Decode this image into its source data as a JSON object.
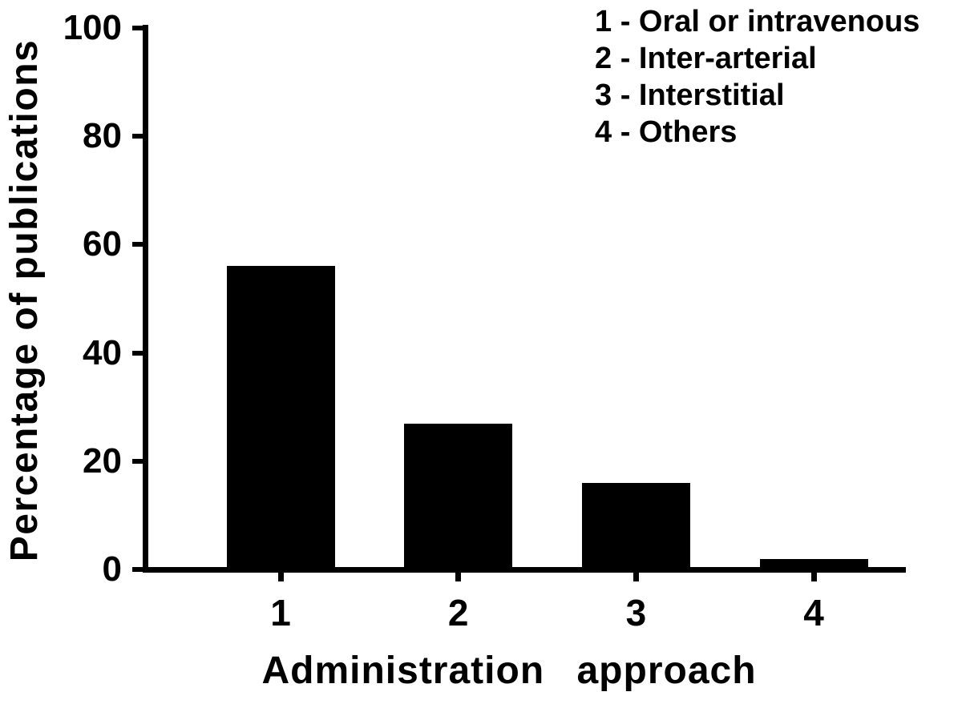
{
  "figure": {
    "background": "#ffffff",
    "foreground": "#000000"
  },
  "chart_data": {
    "type": "bar",
    "title": "",
    "xlabel": "Administration approach",
    "ylabel": "Percentage of publications",
    "categories": [
      "1",
      "2",
      "3",
      "4"
    ],
    "values": [
      56,
      27,
      16,
      2
    ],
    "ylim": [
      0,
      100
    ],
    "yticks": [
      0,
      20,
      40,
      60,
      80,
      100
    ],
    "bar_color": "#000000",
    "grid": false,
    "legend_position": "top-right",
    "legend": [
      "1 - Oral or intravenous",
      "2 - Inter-arterial",
      "3 - Interstitial",
      "4 - Others"
    ]
  }
}
